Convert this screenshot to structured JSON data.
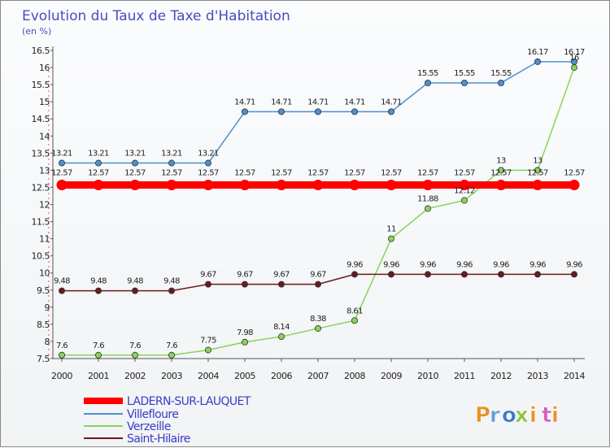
{
  "chart_data": {
    "type": "line",
    "title": "Evolution du Taux de Taxe d'Habitation",
    "subtitle": "(en %)",
    "xlabel": "",
    "ylabel": "(en %)",
    "categories": [
      "2000",
      "2001",
      "2002",
      "2003",
      "2004",
      "2005",
      "2006",
      "2007",
      "2008",
      "2009",
      "2010",
      "2011",
      "2012",
      "2013",
      "2014"
    ],
    "ylim": [
      7.5,
      16.5
    ],
    "yticks": [
      "7.5",
      "8",
      "8.5",
      "9",
      "9.5",
      "10",
      "10.5",
      "11",
      "11.5",
      "12",
      "12.5",
      "13",
      "13.5",
      "14",
      "14.5",
      "15",
      "15.5",
      "16",
      "16.5"
    ],
    "grid": false,
    "legend_position": "bottom-left",
    "series": [
      {
        "name": "LADERN-SUR-LAUQUET",
        "color": "#ff0000",
        "values": [
          12.57,
          12.57,
          12.57,
          12.57,
          12.57,
          12.57,
          12.57,
          12.57,
          12.57,
          12.57,
          12.57,
          12.57,
          12.57,
          12.57,
          12.57
        ],
        "labels": [
          "12.57",
          "12.57",
          "12.57",
          "12.57",
          "12.57",
          "12.57",
          "12.57",
          "12.57",
          "12.57",
          "12.57",
          "12.57",
          "12.57",
          "12.57",
          "12.57",
          "12.57"
        ]
      },
      {
        "name": "Villefloure",
        "color": "#4d8fd1",
        "values": [
          13.21,
          13.21,
          13.21,
          13.21,
          13.21,
          14.71,
          14.71,
          14.71,
          14.71,
          14.71,
          15.55,
          15.55,
          15.55,
          16.17,
          16.17
        ],
        "labels": [
          "13.21",
          "13.21",
          "13.21",
          "13.21",
          "13.21",
          "14.71",
          "14.71",
          "14.71",
          "14.71",
          "14.71",
          "15.55",
          "15.55",
          "15.55",
          "16.17",
          "16.17"
        ]
      },
      {
        "name": "Verzeille",
        "color": "#8ad35a",
        "values": [
          7.6,
          7.6,
          7.6,
          7.6,
          7.75,
          7.98,
          8.14,
          8.38,
          8.61,
          11,
          11.88,
          12.12,
          13,
          13,
          16
        ],
        "labels": [
          "7.6",
          "7.6",
          "7.6",
          "7.6",
          "7.75",
          "7.98",
          "8.14",
          "8.38",
          "8.61",
          "11",
          "11.88",
          "12.12",
          "13",
          "13",
          "16"
        ]
      },
      {
        "name": "Saint-Hilaire",
        "color": "#6b1a1a",
        "values": [
          9.48,
          9.48,
          9.48,
          9.48,
          9.67,
          9.67,
          9.67,
          9.67,
          9.96,
          9.96,
          9.96,
          9.96,
          9.96,
          9.96,
          9.96
        ],
        "labels": [
          "9.48",
          "9.48",
          "9.48",
          "9.48",
          "9.67",
          "9.67",
          "9.67",
          "9.67",
          "9.96",
          "9.96",
          "9.96",
          "9.96",
          "9.96",
          "9.96",
          "9.96"
        ]
      }
    ]
  },
  "branding": {
    "logo_text": "Proxiti",
    "logo_colors": [
      "#e9902b",
      "#5aa0dc",
      "#3b7ac9",
      "#8ac43c",
      "#e9902b",
      "#d95cc4",
      "#e9902b"
    ]
  }
}
